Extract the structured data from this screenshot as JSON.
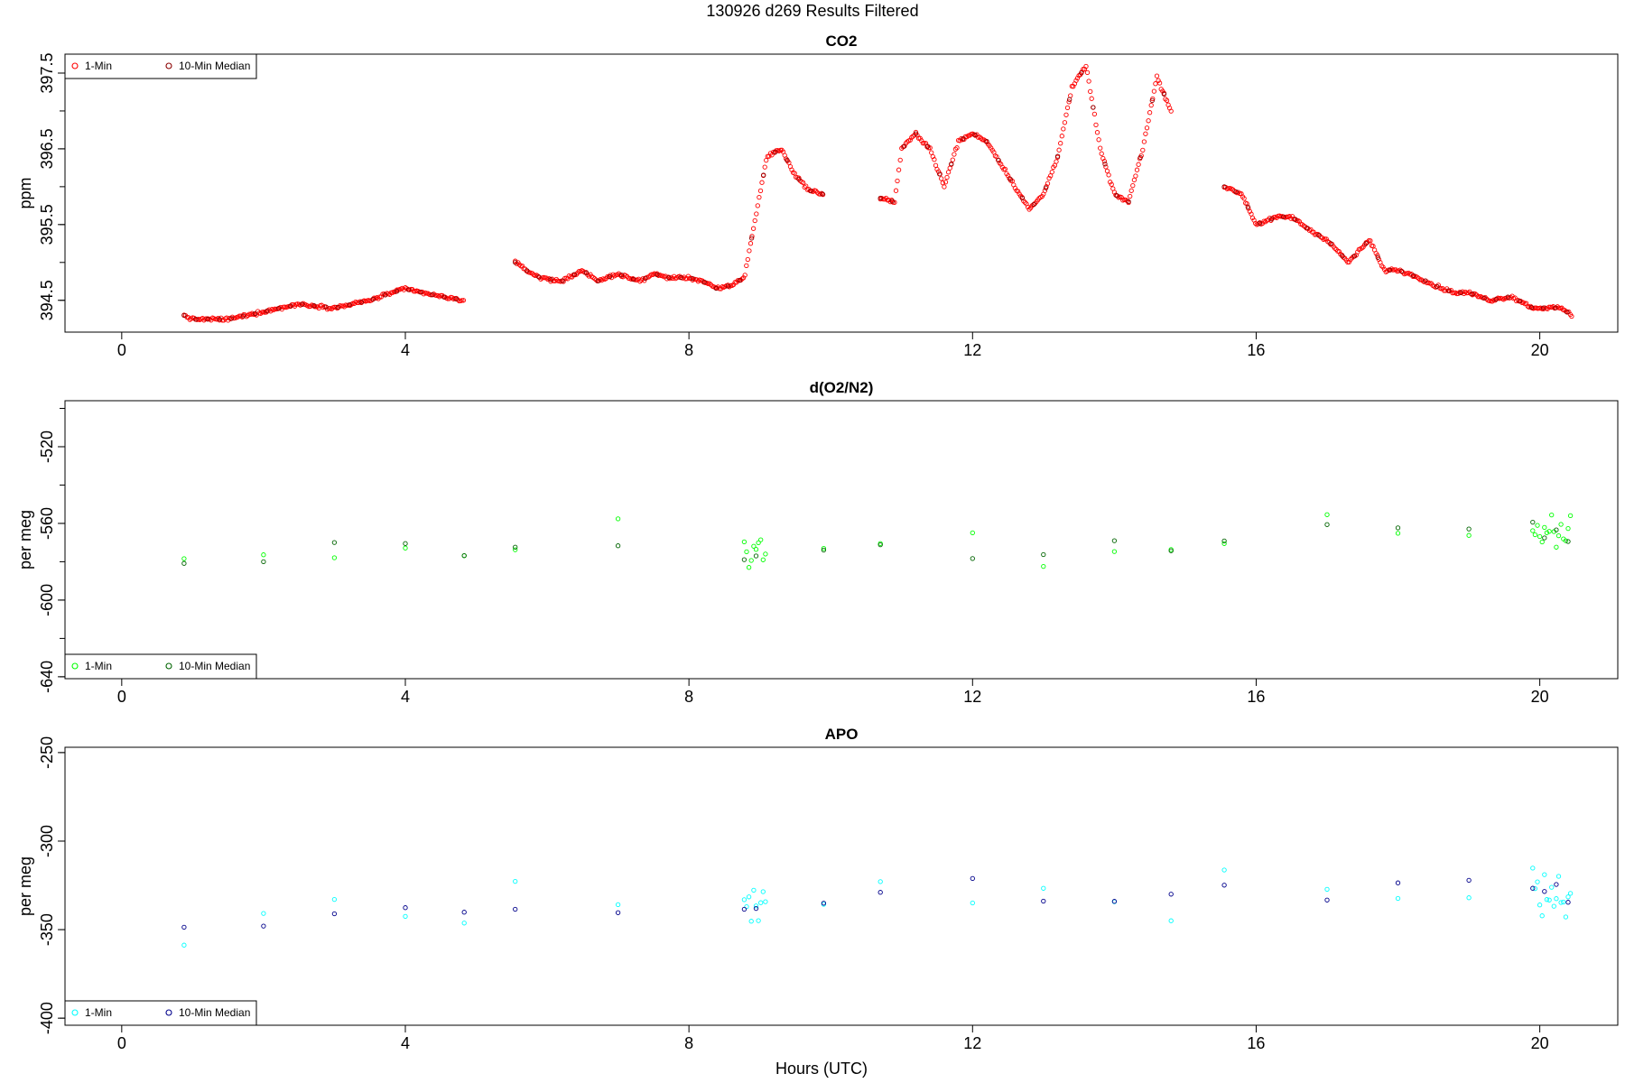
{
  "page": {
    "title": "130926   d269   Results Filtered",
    "xlabel": "Hours (UTC)"
  },
  "legend": {
    "one_min": "1-Min",
    "median": "10-Min Median"
  },
  "colors": {
    "co2": "#ff0000",
    "co2_median": "#8b0000",
    "o2": "#00ff00",
    "o2_median": "#006400",
    "apo": "#00ffff",
    "apo_median": "#00008b",
    "axis": "#000000"
  },
  "chart_data": [
    {
      "type": "scatter",
      "title": "CO2",
      "xlabel": "",
      "ylabel": "ppm",
      "xlim": [
        -0.8,
        21.1
      ],
      "ylim": [
        394.08,
        397.75
      ],
      "xticks": [
        0,
        4,
        8,
        12,
        16,
        20
      ],
      "yticks": [
        394.5,
        395.5,
        396.5,
        397.5
      ],
      "ytick_labels": [
        "394.5",
        "395.5",
        "396.5",
        "397.5"
      ],
      "minor_yticks": [
        394.5,
        395.0,
        395.5,
        396.0,
        396.5,
        397.0,
        397.5
      ],
      "legend_position": "top-left",
      "series": [
        {
          "name": "1-Min",
          "kind": "one_min",
          "jitter": 0.02,
          "step": 0.02,
          "x": [
            0.88,
            1.0,
            1.5,
            2.0,
            2.5,
            3.0,
            3.5,
            3.8,
            4.0,
            4.5,
            4.83,
            5.55,
            5.7,
            5.9,
            6.2,
            6.5,
            6.7,
            7.0,
            7.3,
            7.5,
            7.7,
            8.0,
            8.2,
            8.4,
            8.6,
            8.78,
            9.1,
            9.3,
            9.5,
            9.7,
            9.9,
            10.7,
            10.9,
            11.0,
            11.2,
            11.4,
            11.6,
            11.8,
            12.0,
            12.2,
            12.4,
            12.6,
            12.8,
            13.0,
            13.2,
            13.4,
            13.6,
            13.8,
            14.0,
            14.2,
            14.4,
            14.6,
            14.8,
            15.55,
            15.8,
            16.0,
            16.3,
            16.5,
            16.8,
            17.0,
            17.3,
            17.6,
            17.8,
            18.0,
            18.3,
            18.5,
            18.8,
            19.0,
            19.3,
            19.6,
            19.9,
            20.3,
            20.45
          ],
          "y": [
            394.3,
            394.25,
            394.25,
            394.35,
            394.45,
            394.4,
            394.5,
            394.6,
            394.65,
            394.55,
            394.5,
            395.0,
            394.9,
            394.8,
            394.75,
            394.9,
            394.75,
            394.85,
            394.75,
            394.85,
            394.8,
            394.8,
            394.75,
            394.65,
            394.7,
            394.8,
            396.4,
            396.5,
            396.15,
            395.95,
            395.9,
            395.85,
            395.8,
            396.5,
            396.7,
            396.5,
            396.0,
            396.6,
            396.7,
            396.6,
            396.3,
            396.0,
            395.7,
            395.9,
            396.4,
            397.3,
            397.6,
            396.5,
            395.9,
            395.8,
            396.5,
            397.45,
            397.0,
            396.0,
            395.9,
            395.5,
            395.6,
            395.6,
            395.4,
            395.3,
            395.0,
            395.3,
            394.9,
            394.9,
            394.8,
            394.7,
            394.6,
            394.6,
            394.5,
            394.55,
            394.4,
            394.4,
            394.3
          ]
        },
        {
          "name": "10-Min Median",
          "kind": "median",
          "jitter": 0.0,
          "step": 0.1667,
          "x": [
            0.88,
            1.0,
            1.5,
            2.0,
            2.5,
            3.0,
            3.5,
            3.8,
            4.0,
            4.5,
            4.83,
            5.55,
            5.7,
            5.9,
            6.2,
            6.5,
            6.7,
            7.0,
            7.3,
            7.5,
            7.7,
            8.0,
            8.2,
            8.4,
            8.6,
            8.78,
            9.1,
            9.3,
            9.5,
            9.7,
            9.9,
            10.7,
            10.9,
            11.0,
            11.2,
            11.4,
            11.6,
            11.8,
            12.0,
            12.2,
            12.4,
            12.6,
            12.8,
            13.0,
            13.2,
            13.4,
            13.6,
            13.8,
            14.0,
            14.2,
            14.4,
            14.6,
            14.8,
            15.55,
            15.8,
            16.0,
            16.3,
            16.5,
            16.8,
            17.0,
            17.3,
            17.6,
            17.8,
            18.0,
            18.3,
            18.5,
            18.8,
            19.0,
            19.3,
            19.6,
            19.9,
            20.3,
            20.45
          ],
          "y": [
            394.3,
            394.25,
            394.25,
            394.35,
            394.45,
            394.4,
            394.5,
            394.6,
            394.65,
            394.55,
            394.5,
            395.0,
            394.9,
            394.8,
            394.75,
            394.9,
            394.75,
            394.85,
            394.75,
            394.85,
            394.8,
            394.8,
            394.75,
            394.65,
            394.7,
            394.8,
            396.4,
            396.5,
            396.15,
            395.95,
            395.9,
            395.85,
            395.8,
            396.5,
            396.7,
            396.5,
            396.0,
            396.6,
            396.7,
            396.6,
            396.3,
            396.0,
            395.7,
            395.9,
            396.4,
            397.3,
            397.6,
            396.5,
            395.9,
            395.8,
            396.5,
            397.45,
            397.0,
            396.0,
            395.9,
            395.5,
            395.6,
            395.6,
            395.4,
            395.3,
            395.0,
            395.3,
            394.9,
            394.9,
            394.8,
            394.7,
            394.6,
            394.6,
            394.5,
            394.55,
            394.4,
            394.4,
            394.3
          ]
        }
      ]
    },
    {
      "type": "scatter",
      "title": "d(O2/N2)",
      "xlabel": "",
      "ylabel": "per meg",
      "xlim": [
        -0.8,
        21.1
      ],
      "ylim": [
        -641,
        -496
      ],
      "xticks": [
        0,
        4,
        8,
        12,
        16,
        20
      ],
      "yticks": [
        -520,
        -560,
        -600,
        -640
      ],
      "ytick_labels": [
        "-520",
        "-560",
        "-600",
        "-640"
      ],
      "minor_yticks": [
        -500,
        -520,
        -540,
        -560,
        -580,
        -600,
        -620,
        -640
      ],
      "legend_position": "bottom-left",
      "series": [
        {
          "name": "1-Min",
          "kind": "one_min",
          "jitter": 12,
          "step": 0.0333,
          "x": [
            0.88,
            2.0,
            3.0,
            4.0,
            4.83,
            5.55,
            7.0,
            8.78,
            9.1,
            9.9,
            10.7,
            12.0,
            13.0,
            14.0,
            14.8,
            15.55,
            17.0,
            18.0,
            19.0,
            19.9,
            20.3,
            20.45
          ],
          "y": [
            -582,
            -580,
            -575,
            -572,
            -576,
            -572,
            -574,
            -578,
            -578,
            -572,
            -575,
            -574,
            -572,
            -574,
            -574,
            -568,
            -566,
            -566,
            -564,
            -563,
            -566,
            -566
          ]
        },
        {
          "name": "10-Min Median",
          "kind": "median",
          "jitter": 6,
          "step": 0.1667,
          "x": [
            0.88,
            2.0,
            3.0,
            4.0,
            4.83,
            5.55,
            7.0,
            8.78,
            9.1,
            9.9,
            10.7,
            12.0,
            13.0,
            14.0,
            14.8,
            15.55,
            17.0,
            18.0,
            19.0,
            19.9,
            20.3,
            20.45
          ],
          "y": [
            -582,
            -580,
            -575,
            -572,
            -576,
            -572,
            -574,
            -578,
            -578,
            -572,
            -575,
            -574,
            -572,
            -574,
            -574,
            -568,
            -566,
            -566,
            -564,
            -563,
            -566,
            -566
          ]
        }
      ]
    },
    {
      "type": "scatter",
      "title": "APO",
      "xlabel": "Hours (UTC)",
      "ylabel": "per meg",
      "xlim": [
        -0.8,
        21.1
      ],
      "ylim": [
        -404,
        -247
      ],
      "xticks": [
        0,
        4,
        8,
        12,
        16,
        20
      ],
      "yticks": [
        -250,
        -300,
        -350,
        -400
      ],
      "ytick_labels": [
        "-250",
        "-300",
        "-350",
        "-400"
      ],
      "minor_yticks": [
        -250,
        -300,
        -350,
        -400
      ],
      "legend_position": "bottom-left",
      "series": [
        {
          "name": "1-Min",
          "kind": "one_min",
          "jitter": 13,
          "step": 0.0333,
          "x": [
            0.88,
            2.0,
            3.0,
            4.0,
            4.83,
            5.55,
            7.0,
            8.78,
            9.1,
            9.9,
            10.7,
            12.0,
            13.0,
            14.0,
            14.8,
            15.55,
            17.0,
            18.0,
            19.0,
            19.9,
            20.3,
            20.45
          ],
          "y": [
            -350,
            -345,
            -340,
            -338,
            -342,
            -336,
            -338,
            -340,
            -338,
            -333,
            -333,
            -330,
            -330,
            -328,
            -328,
            -327,
            -328,
            -328,
            -328,
            -328,
            -328,
            -330
          ]
        },
        {
          "name": "10-Min Median",
          "kind": "median",
          "jitter": 7,
          "step": 0.1667,
          "x": [
            0.88,
            2.0,
            3.0,
            4.0,
            4.83,
            5.55,
            7.0,
            8.78,
            9.1,
            9.9,
            10.7,
            12.0,
            13.0,
            14.0,
            14.8,
            15.55,
            17.0,
            18.0,
            19.0,
            19.9,
            20.3,
            20.45
          ],
          "y": [
            -350,
            -345,
            -340,
            -338,
            -342,
            -336,
            -338,
            -340,
            -338,
            -333,
            -333,
            -330,
            -330,
            -328,
            -328,
            -327,
            -328,
            -328,
            -328,
            -328,
            -328,
            -330
          ]
        }
      ]
    }
  ]
}
